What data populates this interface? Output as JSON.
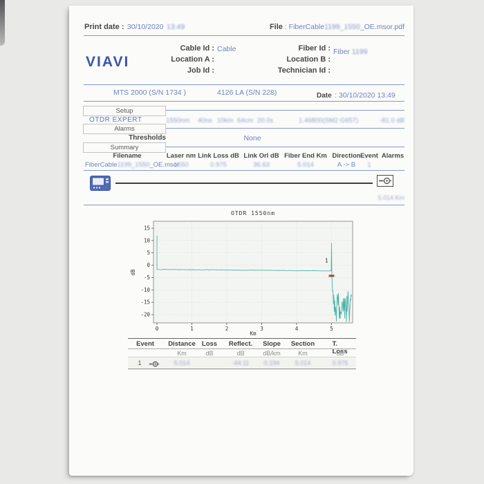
{
  "theme": {
    "background": "#e9e9e7",
    "paper": "#fbfbf9",
    "accent_blue": "#3c56a6",
    "rule_blue": "#8598cb",
    "trace_teal": "#4fb3a8",
    "marker_red": "#9e4a3a"
  },
  "header": {
    "print_date_label": "Print date :",
    "print_date_value": "30/10/2020",
    "print_time_value": "13:49",
    "file_label": "File",
    "file_sep": " : ",
    "file_prefix": "FiberCable",
    "file_blurred": "1199_1550",
    "file_suffix": "_OE.msor.pdf"
  },
  "logo": {
    "text": "VIAVI"
  },
  "info": {
    "cable_id_label": "Cable Id :",
    "cable_id_value": "Cable",
    "fiber_id_label": "Fiber Id :",
    "fiber_id_prefix": "Fiber ",
    "fiber_id_blurred": "1199",
    "location_a_label": "Location A :",
    "location_b_label": "Location B :",
    "job_id_label": "Job Id :",
    "technician_id_label": "Technician Id :"
  },
  "device_row": {
    "model": "MTS 2000 (S/N 1734 )",
    "module": "4126 LA (S/N 228)",
    "date_label": "Date",
    "date_value": ": 30/10/2020 13:49"
  },
  "setup": {
    "setup_tab": "Setup",
    "mode": "OTDR EXPERT",
    "params": [
      "1550nm",
      "40ns",
      "10km",
      "64cm",
      "20.0s",
      "1.46800(SM2 G657)",
      "-81.0 dB"
    ],
    "alarms_tab": "Alarms",
    "thresholds_label": "Thresholds",
    "thresholds_value": "None",
    "summary_tab": "Summary"
  },
  "summary_table": {
    "headers": [
      "Filename",
      "Laser nm",
      "Link Loss dB",
      "Link Orl dB",
      "Fiber End Km",
      "Direction",
      "Event",
      "Alarms"
    ],
    "row": {
      "filename_prefix": "FiberCable",
      "filename_blurred": "1199_1550",
      "filename_suffix": "_OE.msor",
      "laser": "1550",
      "link_loss": "0.975",
      "link_orl": "36.63",
      "fiber_end": "5.014",
      "direction": "A -> B",
      "event": "1",
      "alarms": ""
    }
  },
  "schematic": {
    "end_distance": "5.014 Km"
  },
  "event_table": {
    "headers": [
      "Event",
      "Distance",
      "Loss",
      "Reflect.",
      "Slope",
      "Section",
      "T. Loss"
    ],
    "units": [
      "Km",
      "dB",
      "dB",
      "dB/km",
      "Km",
      "dB"
    ],
    "row": {
      "event": "1",
      "distance": "5.014",
      "loss": "",
      "reflect": "-44.11",
      "slope": "0.194",
      "section": "5.014",
      "t_loss": "0.975"
    }
  },
  "chart_data": {
    "type": "line",
    "title": "OTDR 1550nm",
    "xlabel": "Km",
    "ylabel": "dB",
    "xlim": [
      0,
      5.6
    ],
    "ylim": [
      -23.5,
      17.5
    ],
    "xticks": [
      0,
      1,
      2,
      3,
      4,
      5
    ],
    "yticks": [
      15,
      10,
      5,
      0,
      -5,
      -10,
      -15,
      -20
    ],
    "grid": true,
    "legend": false,
    "trace_color": "#4fb3a8",
    "segments": {
      "launch_spike": {
        "x": 0,
        "y_top": 12,
        "y_base": -1.7
      },
      "fiber": {
        "x1": 0.02,
        "y1": -1.7,
        "x2": 4.97,
        "y2": -2.3,
        "slope_db_per_km": 0.194
      },
      "end_spike": {
        "x": 5.0,
        "y_top": 9,
        "y_base": -2.3
      },
      "noise": {
        "x1": 5.03,
        "x2": 5.58,
        "y_min": -23,
        "y_max": -10
      }
    },
    "event_marker": {
      "label": "1",
      "x": 5.0,
      "y": -4.3,
      "color": "#9e4a3a"
    }
  }
}
